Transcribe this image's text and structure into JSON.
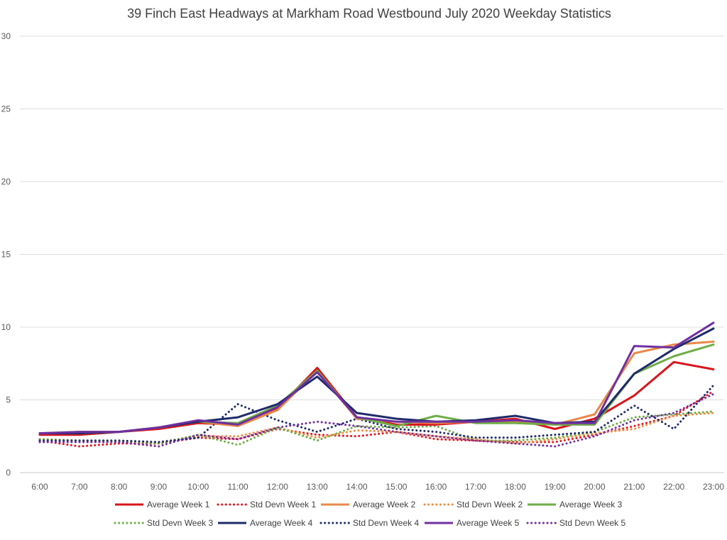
{
  "chart_data": {
    "type": "line",
    "title": "39 Finch East Headways at Markham Road Westbound July 2020 Weekday Statistics",
    "xlabel": "",
    "ylabel": "",
    "categories": [
      "6:00",
      "7:00",
      "8:00",
      "9:00",
      "10:00",
      "11:00",
      "12:00",
      "13:00",
      "14:00",
      "15:00",
      "16:00",
      "17:00",
      "18:00",
      "19:00",
      "20:00",
      "21:00",
      "22:00",
      "23:00"
    ],
    "ylim": [
      0,
      30
    ],
    "yticks": [
      0,
      5,
      10,
      15,
      20,
      25,
      30
    ],
    "grid": true,
    "legend_position": "bottom",
    "series": [
      {
        "name": "Average Week 1",
        "color": "#d9141b",
        "style": "solid",
        "values": [
          2.6,
          2.6,
          2.8,
          3.0,
          3.4,
          3.3,
          4.4,
          7.2,
          3.8,
          3.3,
          3.3,
          3.5,
          3.7,
          3.0,
          3.7,
          5.3,
          7.6,
          7.1
        ]
      },
      {
        "name": "Std Devn Week 1",
        "color": "#e8131b",
        "style": "dotted",
        "values": [
          2.2,
          1.8,
          2.0,
          2.0,
          2.4,
          2.3,
          3.0,
          2.6,
          2.5,
          2.8,
          2.3,
          2.2,
          2.1,
          2.1,
          2.6,
          3.2,
          3.9,
          5.6
        ]
      },
      {
        "name": "Average Week 2",
        "color": "#e8894a",
        "style": "solid",
        "values": [
          2.7,
          2.7,
          2.8,
          3.1,
          3.5,
          3.2,
          4.3,
          7.0,
          3.7,
          3.5,
          3.4,
          3.5,
          3.5,
          3.3,
          4.0,
          8.2,
          8.8,
          9.0
        ]
      },
      {
        "name": "Std Devn Week 2",
        "color": "#ee8c40",
        "style": "dotted",
        "values": [
          2.3,
          2.2,
          2.1,
          2.1,
          2.5,
          2.5,
          3.1,
          2.4,
          2.9,
          2.8,
          2.5,
          2.3,
          2.0,
          2.3,
          2.7,
          3.0,
          3.9,
          4.1
        ]
      },
      {
        "name": "Average Week 3",
        "color": "#70ad47",
        "style": "solid",
        "values": [
          2.7,
          2.8,
          2.8,
          3.1,
          3.5,
          3.4,
          4.6,
          7.0,
          3.8,
          3.2,
          3.9,
          3.4,
          3.4,
          3.3,
          3.3,
          6.8,
          8.0,
          8.8
        ]
      },
      {
        "name": "Std Devn Week 3",
        "color": "#70ad47",
        "style": "dotted",
        "values": [
          2.3,
          2.2,
          2.2,
          2.0,
          2.6,
          1.9,
          3.1,
          2.2,
          3.2,
          3.1,
          3.2,
          2.2,
          2.2,
          2.4,
          2.8,
          3.8,
          4.0,
          4.2
        ]
      },
      {
        "name": "Average Week 4",
        "color": "#1f2b6b",
        "style": "solid",
        "values": [
          2.7,
          2.7,
          2.8,
          3.1,
          3.5,
          3.8,
          4.7,
          6.6,
          4.1,
          3.7,
          3.5,
          3.6,
          3.9,
          3.4,
          3.5,
          6.8,
          8.5,
          9.9
        ]
      },
      {
        "name": "Std Devn Week 4",
        "color": "#1f2b6b",
        "style": "dotted",
        "values": [
          2.2,
          2.2,
          2.2,
          2.1,
          2.4,
          4.7,
          3.6,
          2.8,
          3.7,
          3.0,
          2.8,
          2.4,
          2.4,
          2.6,
          2.8,
          4.6,
          3.0,
          6.0
        ]
      },
      {
        "name": "Average Week 5",
        "color": "#7030a0",
        "style": "solid",
        "values": [
          2.7,
          2.8,
          2.8,
          3.1,
          3.6,
          3.3,
          4.5,
          6.9,
          3.8,
          3.5,
          3.5,
          3.5,
          3.6,
          3.4,
          3.4,
          8.7,
          8.6,
          10.3
        ]
      },
      {
        "name": "Std Devn Week 5",
        "color": "#7030a0",
        "style": "dotted",
        "values": [
          2.1,
          2.1,
          2.1,
          1.8,
          2.6,
          2.3,
          3.1,
          3.5,
          3.2,
          2.8,
          2.5,
          2.2,
          2.0,
          1.8,
          2.5,
          3.6,
          4.1,
          5.4
        ]
      }
    ]
  }
}
